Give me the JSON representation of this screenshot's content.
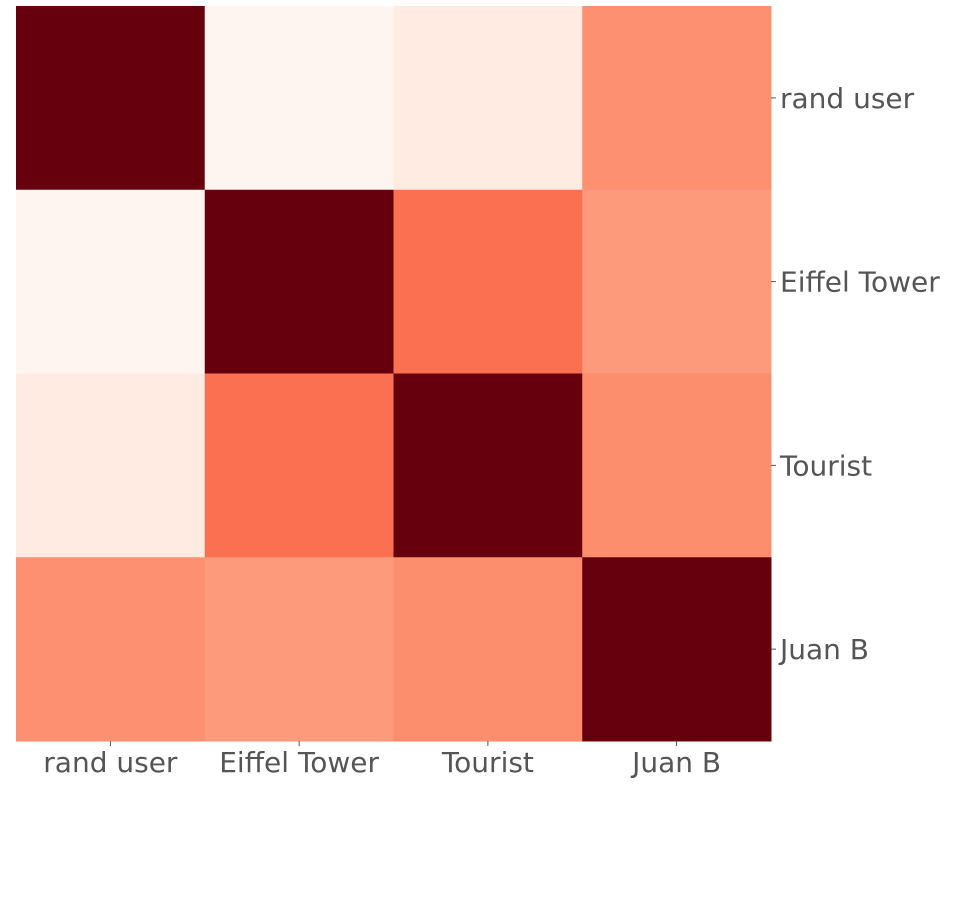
{
  "chart_data": {
    "type": "heatmap",
    "title": "",
    "xlabel": "",
    "ylabel": "",
    "rows": [
      "rand user",
      "Eiffel Tower",
      "Tourist",
      "Juan B"
    ],
    "columns": [
      "rand user",
      "Eiffel Tower",
      "Tourist",
      "Juan B"
    ],
    "values": [
      [
        1.0,
        0.0,
        0.06,
        0.38
      ],
      [
        0.0,
        1.0,
        0.48,
        0.35
      ],
      [
        0.06,
        0.48,
        1.0,
        0.39
      ],
      [
        0.38,
        0.35,
        0.39,
        1.0
      ]
    ],
    "colormap": [
      "#fff5f0",
      "#fee0d2",
      "#fcbba1",
      "#fc9272",
      "#fb6a4a",
      "#ef3b2c",
      "#cb181d",
      "#a50f15",
      "#67000d"
    ],
    "grid": false,
    "colorbar": false
  }
}
